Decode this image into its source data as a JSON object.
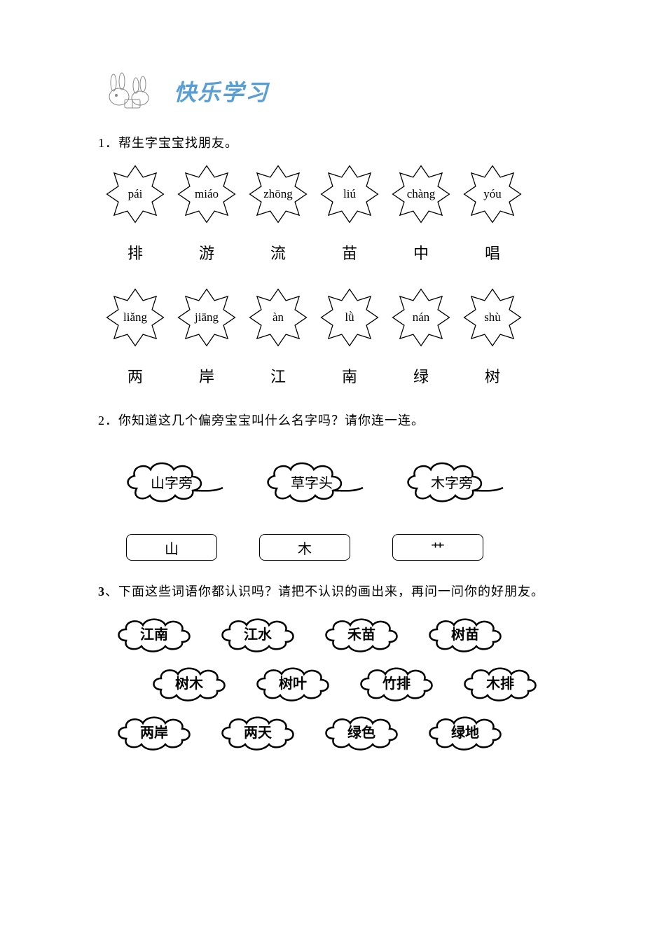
{
  "header": {
    "title": "快乐学习",
    "title_color": "#5a9fd4"
  },
  "q1": {
    "prompt": "1．帮生字宝宝找朋友。",
    "pinyin_row1": [
      "pái",
      "miáo",
      "zhōng",
      "liú",
      "chàng",
      "yóu"
    ],
    "chars_row1": [
      "排",
      "游",
      "流",
      "苗",
      "中",
      "唱"
    ],
    "pinyin_row2": [
      "liǎng",
      "jiāng",
      "àn",
      "lǜ",
      "nán",
      "shù"
    ],
    "chars_row2": [
      "两",
      "岸",
      "江",
      "南",
      "绿",
      "树"
    ]
  },
  "q2": {
    "prompt": "2．你知道这几个偏旁宝宝叫什么名字吗？请你连一连。",
    "clouds": [
      "山字旁",
      "草字头",
      "木字旁"
    ],
    "boxes": [
      "山",
      "木",
      "艹"
    ]
  },
  "q3": {
    "prompt_prefix": "3",
    "prompt_rest": "、下面这些词语你都认识吗？请把不认识的画出来，再问一问你的好朋友。",
    "row1": [
      "江南",
      "江水",
      "禾苗",
      "树苗"
    ],
    "row2": [
      "树木",
      "树叶",
      "竹排",
      "木排"
    ],
    "row3": [
      "两岸",
      "两天",
      "绿色",
      "绿地"
    ]
  },
  "shapes": {
    "star_stroke": "#000000",
    "star_fill": "#ffffff",
    "cloud_stroke": "#000000",
    "cloud_fill": "#ffffff"
  }
}
